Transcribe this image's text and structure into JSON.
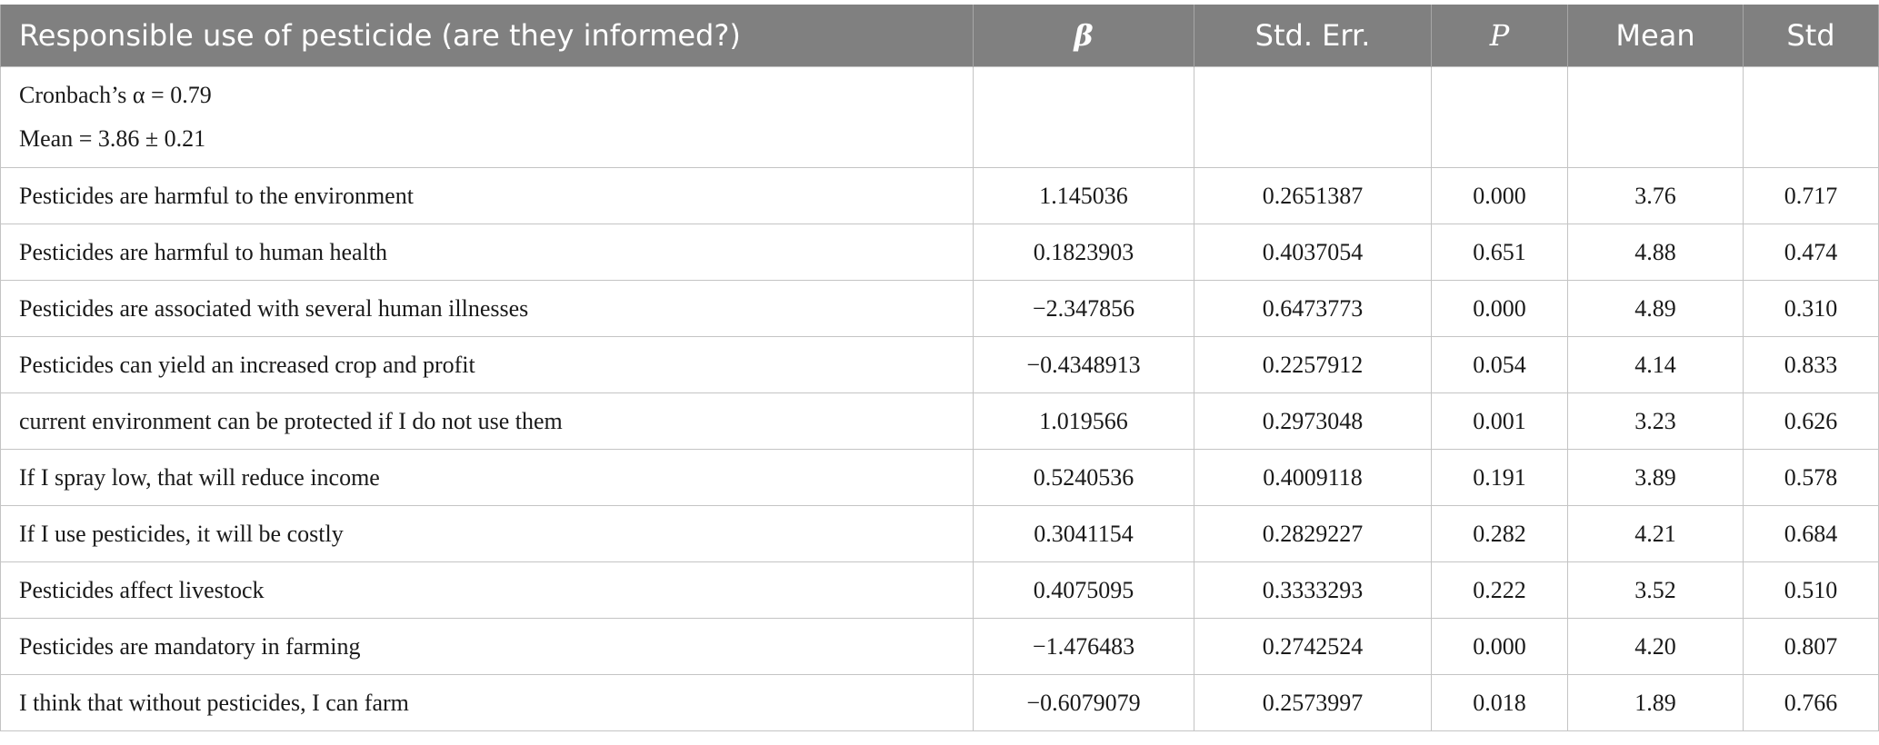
{
  "table": {
    "headers": [
      "Responsible use of pesticide (are they informed?)",
      "β",
      "Std. Err.",
      "P",
      "Mean",
      "Std"
    ],
    "meta": {
      "alpha": "Cronbach’s α = 0.79",
      "mean": "Mean = 3.86 ± 0.21"
    },
    "rows": [
      [
        "Pesticides are harmful to the environment",
        "1.145036",
        "0.2651387",
        "0.000",
        "3.76",
        "0.717"
      ],
      [
        "Pesticides are harmful to human health",
        "0.1823903",
        "0.4037054",
        "0.651",
        "4.88",
        "0.474"
      ],
      [
        "Pesticides are associated with several human illnesses",
        "−2.347856",
        "0.6473773",
        "0.000",
        "4.89",
        "0.310"
      ],
      [
        "Pesticides can yield an increased crop and profit",
        "−0.4348913",
        "0.2257912",
        "0.054",
        "4.14",
        "0.833"
      ],
      [
        "current environment can be protected if I do not use them",
        "1.019566",
        "0.2973048",
        "0.001",
        "3.23",
        "0.626"
      ],
      [
        "If I spray low, that will reduce income",
        "0.5240536",
        "0.4009118",
        "0.191",
        "3.89",
        "0.578"
      ],
      [
        "If I use pesticides, it will be costly",
        "0.3041154",
        "0.2829227",
        "0.282",
        "4.21",
        "0.684"
      ],
      [
        "Pesticides affect livestock",
        "0.4075095",
        "0.3333293",
        "0.222",
        "3.52",
        "0.510"
      ],
      [
        "Pesticides are mandatory in farming",
        "−1.476483",
        "0.2742524",
        "0.000",
        "4.20",
        "0.807"
      ],
      [
        "I think that without pesticides, I can farm",
        "−0.6079079",
        "0.2573997",
        "0.018",
        "1.89",
        "0.766"
      ]
    ]
  }
}
